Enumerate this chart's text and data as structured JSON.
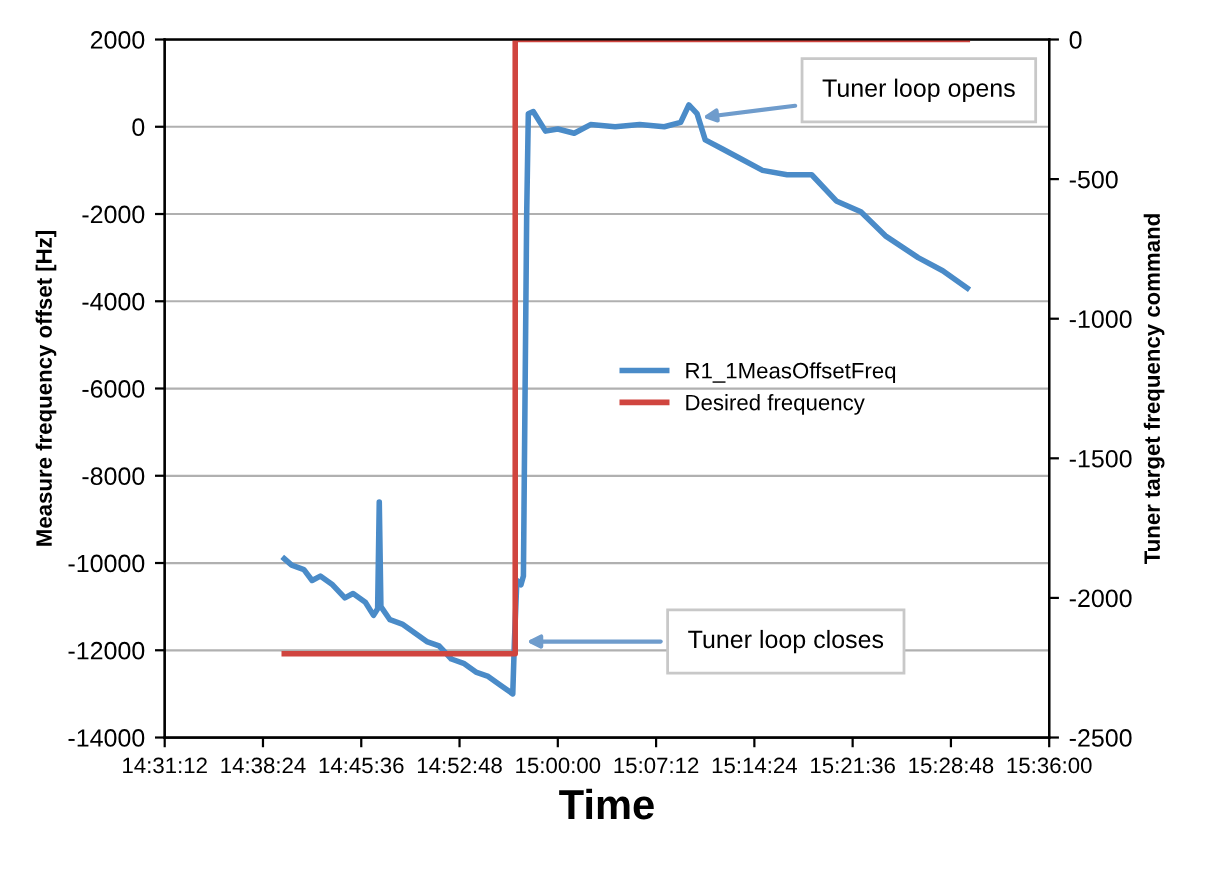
{
  "chart_data": {
    "type": "line",
    "xlabel": "Time",
    "ylabel": "Measure frequency offset [Hz]",
    "y2label": "Tuner target frequency command",
    "xlim": [
      14.52,
      15.6
    ],
    "xticks": [
      {
        "value": 14.52,
        "label": "14:31:12"
      },
      {
        "value": 14.64,
        "label": "14:38:24"
      },
      {
        "value": 14.76,
        "label": "14:45:36"
      },
      {
        "value": 14.88,
        "label": "14:52:48"
      },
      {
        "value": 15.0,
        "label": "15:00:00"
      },
      {
        "value": 15.12,
        "label": "15:07:12"
      },
      {
        "value": 15.24,
        "label": "15:14:24"
      },
      {
        "value": 15.36,
        "label": "15:21:36"
      },
      {
        "value": 15.48,
        "label": "15:28:48"
      },
      {
        "value": 15.6,
        "label": "15:36:00"
      }
    ],
    "ylim": [
      -14000,
      2000
    ],
    "yticks": [
      -14000,
      -12000,
      -10000,
      -8000,
      -6000,
      -4000,
      -2000,
      0,
      2000
    ],
    "y2lim": [
      -2500,
      0
    ],
    "y2ticks": [
      -2500,
      -2000,
      -1500,
      -1000,
      -500,
      0
    ],
    "grid": "y",
    "legend": "center right",
    "marker": "none",
    "line_style": "solid",
    "series": [
      {
        "name": "R1_1MeasOffsetFreq",
        "color": "#4a8bc8",
        "x": [
          14.666,
          14.675,
          14.69,
          14.7,
          14.71,
          14.725,
          14.74,
          14.75,
          14.765,
          14.775,
          14.78,
          14.782,
          14.784,
          14.795,
          14.81,
          14.825,
          14.84,
          14.855,
          14.87,
          14.885,
          14.9,
          14.915,
          14.93,
          14.945,
          14.947,
          14.95,
          14.955,
          14.958,
          14.962,
          14.964,
          14.97,
          14.985,
          15.0,
          15.02,
          15.04,
          15.07,
          15.1,
          15.13,
          15.15,
          15.16,
          15.17,
          15.18,
          15.2,
          15.22,
          15.25,
          15.28,
          15.31,
          15.34,
          15.37,
          15.4,
          15.44,
          15.47,
          15.5
        ],
        "values": [
          -9900,
          -10050,
          -10150,
          -10400,
          -10300,
          -10500,
          -10800,
          -10700,
          -10900,
          -11200,
          -11050,
          -8600,
          -11000,
          -11300,
          -11400,
          -11600,
          -11800,
          -11900,
          -12200,
          -12300,
          -12500,
          -12600,
          -12800,
          -13000,
          -11800,
          -10400,
          -10500,
          -10300,
          -2000,
          300,
          350,
          -100,
          -50,
          -150,
          50,
          0,
          50,
          0,
          100,
          500,
          300,
          -300,
          -500,
          -700,
          -1000,
          -1100,
          -1100,
          -1700,
          -1950,
          -2500,
          -3000,
          -3300,
          -3700
        ]
      },
      {
        "name": "Desired frequency",
        "color": "#d0453f",
        "axis": "y2",
        "x": [
          14.666,
          14.948,
          14.948,
          15.5
        ],
        "values": [
          -2200,
          -2200,
          0,
          0
        ]
      }
    ],
    "annotations": [
      {
        "text": "Tuner loop opens",
        "x": 15.17,
        "y": 200
      },
      {
        "text": "Tuner loop closes",
        "x": 14.955,
        "y": -11800
      }
    ]
  }
}
